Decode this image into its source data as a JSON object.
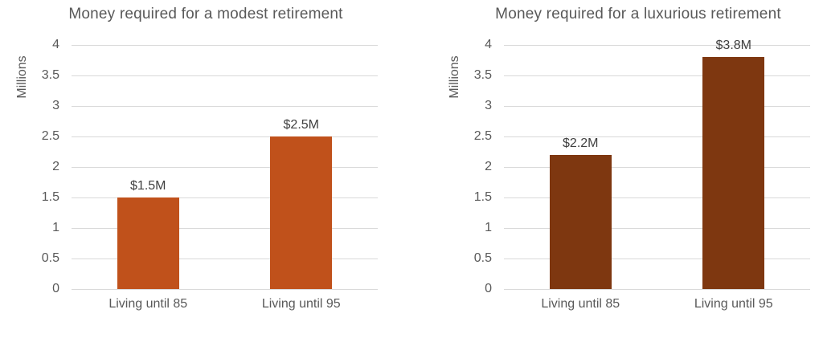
{
  "page": {
    "background": "#ffffff"
  },
  "theme": {
    "title_color": "#595959",
    "axis_text_color": "#595959",
    "data_label_color": "#404040",
    "gridline_color": "#d9d9d9"
  },
  "chart_data": [
    {
      "type": "bar",
      "title": "Money required for a modest retirement",
      "ylabel": "Millions",
      "xlabel": "",
      "categories": [
        "Living until 85",
        "Living until 95"
      ],
      "values": [
        1.5,
        2.5
      ],
      "data_labels": [
        "$1.5M",
        "$2.5M"
      ],
      "yticks": [
        0,
        0.5,
        1,
        1.5,
        2,
        2.5,
        3,
        3.5,
        4
      ],
      "ylim": [
        0,
        4
      ],
      "grid": true,
      "legend": "none",
      "bar_color": "#c0511b"
    },
    {
      "type": "bar",
      "title": "Money required for a luxurious retirement",
      "ylabel": "Millions",
      "xlabel": "",
      "categories": [
        "Living until 85",
        "Living until 95"
      ],
      "values": [
        2.2,
        3.8
      ],
      "data_labels": [
        "$2.2M",
        "$3.8M"
      ],
      "yticks": [
        0,
        0.5,
        1,
        1.5,
        2,
        2.5,
        3,
        3.5,
        4
      ],
      "ylim": [
        0,
        4
      ],
      "grid": true,
      "legend": "none",
      "bar_color": "#7e3710"
    }
  ]
}
